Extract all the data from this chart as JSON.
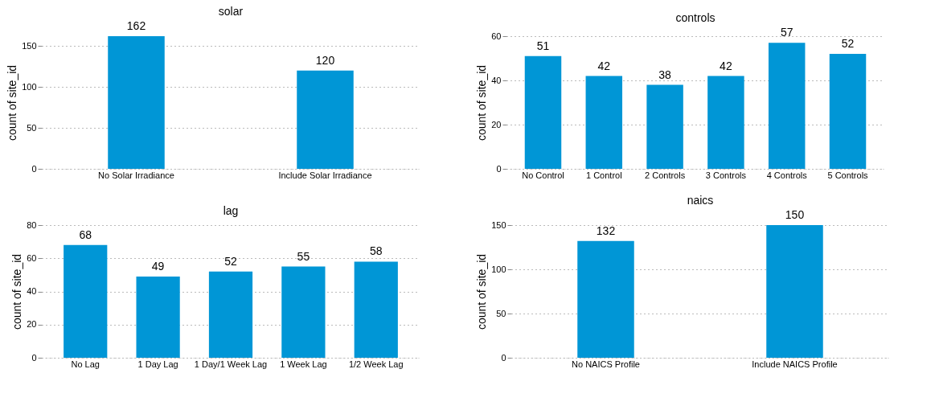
{
  "chart_data": [
    {
      "type": "bar",
      "title": "solar",
      "ylabel": "count of site_id",
      "categories": [
        "No Solar Irradiance",
        "Include Solar Irradiance"
      ],
      "values": [
        162,
        120
      ],
      "color": "#0096d6",
      "ylim": [
        0,
        162
      ],
      "yticks": [
        0,
        50,
        100,
        150
      ],
      "grid": "y",
      "data_labels": true
    },
    {
      "type": "bar",
      "title": "controls",
      "ylabel": "count of site_id",
      "categories": [
        "No Control",
        "1 Control",
        "2 Controls",
        "3 Controls",
        "4 Controls",
        "5 Controls"
      ],
      "values": [
        51,
        42,
        38,
        42,
        57,
        52
      ],
      "color": "#0096d6",
      "ylim": [
        0,
        60
      ],
      "yticks": [
        0,
        20,
        40,
        60
      ],
      "grid": "y",
      "data_labels": true
    },
    {
      "type": "bar",
      "title": "lag",
      "ylabel": "count of site_id",
      "categories": [
        "No Lag",
        "1 Day Lag",
        "1 Day/1 Week Lag",
        "1 Week Lag",
        "1/2 Week Lag"
      ],
      "values": [
        68,
        49,
        52,
        55,
        58
      ],
      "color": "#0096d6",
      "ylim": [
        0,
        80
      ],
      "yticks": [
        0,
        20,
        40,
        60,
        80
      ],
      "grid": "y",
      "data_labels": true
    },
    {
      "type": "bar",
      "title": "naics",
      "ylabel": "count of site_id",
      "categories": [
        "No NAICS Profile",
        "Include NAICS Profile"
      ],
      "values": [
        132,
        150
      ],
      "color": "#0096d6",
      "ylim": [
        0,
        150
      ],
      "yticks": [
        0,
        50,
        100,
        150
      ],
      "grid": "y",
      "data_labels": true
    }
  ]
}
